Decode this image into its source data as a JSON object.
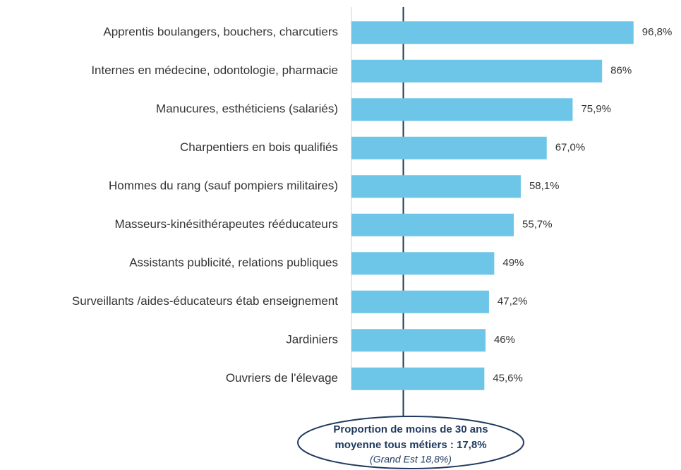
{
  "chart_data": {
    "type": "hbar",
    "categories": [
      "Apprentis boulangers, bouchers, charcutiers",
      "Internes en médecine, odontologie, pharmacie",
      "Manucures, esthéticiens (salariés)",
      "Charpentiers en bois qualifiés",
      "Hommes du rang (sauf pompiers militaires)",
      "Masseurs-kinésithérapeutes rééducateurs",
      "Assistants publicité, relations publiques",
      "Surveillants /aides-éducateurs étab enseignement",
      "Jardiniers",
      "Ouvriers de l'élevage"
    ],
    "values": [
      96.8,
      86,
      75.9,
      67.0,
      58.1,
      55.7,
      49,
      47.2,
      46,
      45.6
    ],
    "value_labels": [
      "96,8%",
      "86%",
      "75,9%",
      "67,0%",
      "58,1%",
      "55,7%",
      "49%",
      "47,2%",
      "46%",
      "45,6%"
    ],
    "color": "#6dc5e8",
    "xlim": [
      0,
      100
    ],
    "reference_line": {
      "value": 17.8,
      "color": "#1f3a5f"
    },
    "annotation": [
      "Proportion de moins de 30 ans",
      "moyenne tous métiers : 17,8%",
      "(Grand Est 18,8%)"
    ]
  }
}
